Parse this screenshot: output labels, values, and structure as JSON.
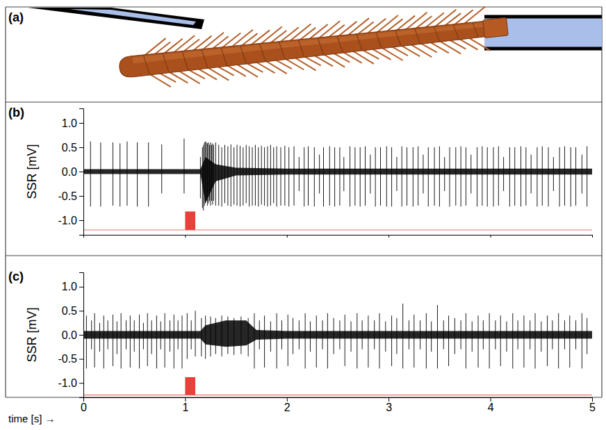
{
  "diagram": {
    "label": "(a)"
  },
  "chart_data": [
    {
      "type": "spike",
      "label": "(b)",
      "y_label": "SSR [mV]",
      "xlim": [
        0,
        5
      ],
      "xticks": [
        0,
        1,
        2,
        3,
        4,
        5
      ],
      "tick_labels": "y",
      "ylim": [
        -1.3,
        1.3
      ],
      "yticks": [
        {
          "value": -1,
          "label": "-1.0"
        },
        {
          "value": -0.5,
          "label": "-0.5"
        },
        {
          "value": 0,
          "label": "0.0"
        },
        {
          "value": 0.5,
          "label": "0.5"
        },
        {
          "value": 1,
          "label": "1.0"
        }
      ],
      "color": "#000000",
      "stimulus": {
        "x": [
          1.0,
          1.1
        ],
        "baseline": -1.2,
        "level": -0.82,
        "color": "#e8413c"
      },
      "noise": {
        "x": [
          0,
          1.15,
          1.2,
          1.3,
          1.5,
          2,
          5
        ],
        "upper": [
          0.05,
          0.05,
          0.3,
          0.15,
          0.08,
          0.06,
          0.06
        ],
        "lower": [
          -0.05,
          -0.05,
          -0.65,
          -0.2,
          -0.08,
          -0.06,
          -0.06
        ]
      },
      "spikes": {
        "x": [
          0.07,
          0.17,
          0.29,
          0.36,
          0.43,
          0.53,
          0.64,
          0.77,
          0.99,
          1.15,
          1.17,
          1.18,
          1.19,
          1.2,
          1.21,
          1.22,
          1.23,
          1.24,
          1.25,
          1.26,
          1.27,
          1.28,
          1.3,
          1.33,
          1.36,
          1.39,
          1.42,
          1.45,
          1.48,
          1.51,
          1.54,
          1.57,
          1.6,
          1.63,
          1.66,
          1.69,
          1.72,
          1.75,
          1.78,
          1.81,
          1.84,
          1.87,
          1.9,
          1.94,
          1.98,
          2.02,
          2.07,
          2.12,
          2.17,
          2.21,
          2.27,
          2.32,
          2.36,
          2.42,
          2.47,
          2.52,
          2.56,
          2.62,
          2.67,
          2.72,
          2.77,
          2.82,
          2.87,
          2.92,
          2.98,
          3.03,
          3.08,
          3.13,
          3.18,
          3.24,
          3.29,
          3.34,
          3.39,
          3.45,
          3.5,
          3.55,
          3.6,
          3.66,
          3.71,
          3.76,
          3.81,
          3.87,
          3.92,
          3.97,
          4.03,
          4.08,
          4.13,
          4.19,
          4.24,
          4.3,
          4.35,
          4.4,
          4.46,
          4.51,
          4.57,
          4.62,
          4.68,
          4.73,
          4.79,
          4.84,
          4.9,
          4.95
        ],
        "high": [
          0.62,
          0.6,
          0.6,
          0.58,
          0.62,
          0.6,
          0.6,
          0.56,
          0.68,
          0.3,
          0.5,
          0.55,
          0.6,
          0.62,
          0.6,
          0.58,
          0.6,
          0.55,
          0.6,
          0.55,
          0.58,
          0.55,
          0.6,
          0.55,
          0.5,
          0.55,
          0.52,
          0.56,
          0.5,
          0.55,
          0.53,
          0.5,
          0.55,
          0.52,
          0.5,
          0.55,
          0.5,
          0.53,
          0.5,
          0.52,
          0.55,
          0.5,
          0.52,
          0.5,
          0.53,
          0.5,
          0.52,
          0.3,
          0.5,
          0.52,
          0.5,
          0.35,
          0.5,
          0.52,
          0.5,
          0.5,
          0.3,
          0.52,
          0.5,
          0.5,
          0.52,
          0.35,
          0.5,
          0.5,
          0.52,
          0.5,
          0.3,
          0.52,
          0.5,
          0.5,
          0.52,
          0.35,
          0.5,
          0.5,
          0.52,
          0.3,
          0.5,
          0.5,
          0.52,
          0.5,
          0.35,
          0.5,
          0.52,
          0.5,
          0.5,
          0.52,
          0.3,
          0.5,
          0.5,
          0.52,
          0.5,
          0.35,
          0.5,
          0.52,
          0.5,
          0.3,
          0.5,
          0.52,
          0.5,
          0.5,
          0.35,
          0.52
        ],
        "low": [
          -0.72,
          -0.72,
          -0.7,
          -0.72,
          -0.7,
          -0.72,
          -0.72,
          -0.45,
          -0.45,
          -0.55,
          -0.75,
          -0.8,
          -0.7,
          -0.65,
          -0.6,
          -0.7,
          -0.65,
          -0.6,
          -0.7,
          -0.6,
          -0.68,
          -0.6,
          -0.7,
          -0.7,
          -0.72,
          -0.65,
          -0.7,
          -0.72,
          -0.68,
          -0.7,
          -0.72,
          -0.7,
          -0.65,
          -0.72,
          -0.7,
          -0.7,
          -0.72,
          -0.68,
          -0.7,
          -0.72,
          -0.7,
          -0.65,
          -0.72,
          -0.7,
          -0.7,
          -0.72,
          -0.7,
          -0.4,
          -0.72,
          -0.7,
          -0.72,
          -0.45,
          -0.72,
          -0.7,
          -0.72,
          -0.7,
          -0.4,
          -0.72,
          -0.7,
          -0.72,
          -0.7,
          -0.45,
          -0.72,
          -0.7,
          -0.72,
          -0.72,
          -0.4,
          -0.72,
          -0.7,
          -0.72,
          -0.7,
          -0.45,
          -0.72,
          -0.7,
          -0.72,
          -0.4,
          -0.72,
          -0.7,
          -0.72,
          -0.7,
          -0.45,
          -0.72,
          -0.7,
          -0.72,
          -0.72,
          -0.7,
          -0.4,
          -0.72,
          -0.7,
          -0.72,
          -0.7,
          -0.45,
          -0.72,
          -0.7,
          -0.72,
          -0.4,
          -0.72,
          -0.7,
          -0.72,
          -0.7,
          -0.45,
          -0.72
        ]
      }
    },
    {
      "type": "spike",
      "label": "(c)",
      "y_label": "SSR [mV]",
      "x_label": "time [s] →",
      "xlim": [
        0,
        5
      ],
      "xticks": [
        0,
        1,
        2,
        3,
        4,
        5
      ],
      "ylim": [
        -1.3,
        1.3
      ],
      "yticks": [
        {
          "value": -1,
          "label": "-1.0"
        },
        {
          "value": -0.5,
          "label": "-0.5"
        },
        {
          "value": 0,
          "label": "0.0"
        },
        {
          "value": 0.5,
          "label": "0.5"
        },
        {
          "value": 1,
          "label": "1.0"
        }
      ],
      "color": "#000000",
      "stimulus": {
        "x": [
          1.0,
          1.1
        ],
        "baseline": -1.25,
        "level": -0.88,
        "color": "#e8413c"
      },
      "noise": {
        "x": [
          0,
          1.15,
          1.2,
          1.4,
          1.6,
          1.7,
          2,
          5
        ],
        "upper": [
          0.08,
          0.08,
          0.2,
          0.3,
          0.3,
          0.1,
          0.08,
          0.08
        ],
        "lower": [
          -0.08,
          -0.08,
          -0.2,
          -0.25,
          -0.22,
          -0.1,
          -0.08,
          -0.08
        ]
      },
      "spikes": {
        "x": [
          0.03,
          0.08,
          0.11,
          0.16,
          0.2,
          0.24,
          0.29,
          0.33,
          0.37,
          0.42,
          0.46,
          0.5,
          0.55,
          0.59,
          0.63,
          0.67,
          0.72,
          0.76,
          0.8,
          0.85,
          0.89,
          0.93,
          0.97,
          1.02,
          1.06,
          1.1,
          1.16,
          1.2,
          1.25,
          1.3,
          1.36,
          1.42,
          1.48,
          1.55,
          1.62,
          1.68,
          1.73,
          1.78,
          1.84,
          1.9,
          1.95,
          2.01,
          2.06,
          2.12,
          2.18,
          2.23,
          2.29,
          2.35,
          2.4,
          2.46,
          2.52,
          2.57,
          2.63,
          2.69,
          2.74,
          2.8,
          2.86,
          2.91,
          2.97,
          3.03,
          3.08,
          3.14,
          3.2,
          3.25,
          3.31,
          3.37,
          3.42,
          3.48,
          3.54,
          3.59,
          3.65,
          3.71,
          3.76,
          3.82,
          3.88,
          3.93,
          3.99,
          4.05,
          4.1,
          4.16,
          4.22,
          4.27,
          4.33,
          4.39,
          4.44,
          4.5,
          4.56,
          4.61,
          4.67,
          4.73,
          4.78,
          4.84,
          4.9,
          4.95
        ],
        "high": [
          0.4,
          0.3,
          0.45,
          0.25,
          0.4,
          0.3,
          0.42,
          0.28,
          0.45,
          0.3,
          0.4,
          0.3,
          0.42,
          0.25,
          0.45,
          0.3,
          0.4,
          0.28,
          0.45,
          0.3,
          0.42,
          0.3,
          0.4,
          0.45,
          0.3,
          0.5,
          0.35,
          0.4,
          0.38,
          0.35,
          0.4,
          0.38,
          0.35,
          0.38,
          0.35,
          0.45,
          0.3,
          0.4,
          0.28,
          0.45,
          0.3,
          0.42,
          0.35,
          0.3,
          0.45,
          0.28,
          0.4,
          0.3,
          0.45,
          0.35,
          0.3,
          0.42,
          0.28,
          0.45,
          0.3,
          0.4,
          0.3,
          0.45,
          0.28,
          0.4,
          0.35,
          0.65,
          0.3,
          0.42,
          0.3,
          0.45,
          0.28,
          0.62,
          0.3,
          0.4,
          0.35,
          0.3,
          0.45,
          0.28,
          0.4,
          0.3,
          0.45,
          0.3,
          0.4,
          0.28,
          0.45,
          0.3,
          0.4,
          0.3,
          0.45,
          0.28,
          0.4,
          0.3,
          0.45,
          0.3,
          0.4,
          0.3,
          0.45,
          0.35
        ],
        "low": [
          -0.7,
          -0.3,
          -0.68,
          -0.35,
          -0.7,
          -0.3,
          -0.65,
          -0.4,
          -0.7,
          -0.3,
          -0.68,
          -0.35,
          -0.7,
          -0.3,
          -0.65,
          -0.4,
          -0.7,
          -0.3,
          -0.68,
          -0.35,
          -0.7,
          -0.3,
          -0.7,
          -0.5,
          -0.3,
          -0.45,
          -0.45,
          -0.5,
          -0.45,
          -0.4,
          -0.45,
          -0.4,
          -0.42,
          -0.4,
          -0.45,
          -0.7,
          -0.3,
          -0.68,
          -0.35,
          -0.7,
          -0.3,
          -0.65,
          -0.4,
          -0.3,
          -0.7,
          -0.35,
          -0.68,
          -0.3,
          -0.7,
          -0.4,
          -0.3,
          -0.65,
          -0.35,
          -0.7,
          -0.3,
          -0.68,
          -0.3,
          -0.7,
          -0.35,
          -0.65,
          -0.4,
          -0.7,
          -0.3,
          -0.68,
          -0.3,
          -0.7,
          -0.35,
          -0.7,
          -0.3,
          -0.65,
          -0.4,
          -0.3,
          -0.7,
          -0.35,
          -0.68,
          -0.3,
          -0.7,
          -0.3,
          -0.65,
          -0.35,
          -0.7,
          -0.3,
          -0.68,
          -0.3,
          -0.7,
          -0.35,
          -0.65,
          -0.3,
          -0.7,
          -0.3,
          -0.68,
          -0.3,
          -0.7,
          -0.4
        ]
      }
    }
  ]
}
